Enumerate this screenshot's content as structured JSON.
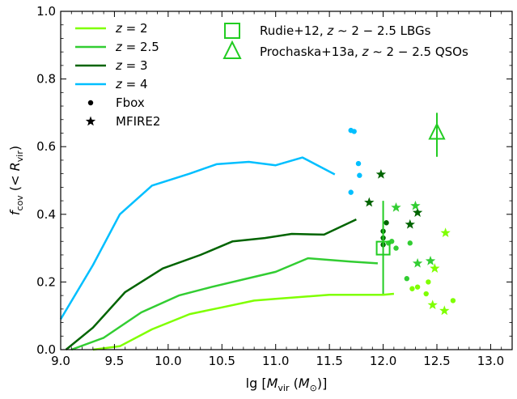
{
  "chart_data": {
    "type": "line",
    "xlabel": "lg [M_vir (M_⊙)]",
    "ylabel": "f_cov (< R_vir)",
    "xlim": [
      9.0,
      13.2
    ],
    "ylim": [
      0.0,
      1.0
    ],
    "x_ticks": [
      "9.0",
      "9.5",
      "10.0",
      "10.5",
      "11.0",
      "11.5",
      "12.0",
      "12.5",
      "13.0"
    ],
    "y_ticks": [
      "0.0",
      "0.2",
      "0.4",
      "0.6",
      "0.8",
      "1.0"
    ],
    "grid": false,
    "legend_left": [
      {
        "name": "z = 2",
        "marker": "line",
        "color": "#7fff00"
      },
      {
        "name": "z = 2.5",
        "marker": "line",
        "color": "#32cd32"
      },
      {
        "name": "z = 3",
        "marker": "line",
        "color": "#006400"
      },
      {
        "name": "z = 4",
        "marker": "line",
        "color": "#00bfff"
      },
      {
        "name": "Fbox",
        "marker": "dot",
        "color": "#000000"
      },
      {
        "name": "MFIRE2",
        "marker": "star",
        "color": "#000000"
      }
    ],
    "legend_right": [
      {
        "name": "Rudie+12, z ∼ 2 − 2.5 LBGs",
        "marker": "square",
        "color": "#22cc22"
      },
      {
        "name": "Prochaska+13a, z ∼ 2 − 2.5 QSOs",
        "marker": "triangle",
        "color": "#22cc22"
      }
    ],
    "series": [
      {
        "z": "2",
        "color": "#7fff00",
        "x": [
          9.3,
          9.55,
          9.85,
          10.2,
          10.5,
          10.8,
          11.0,
          11.2,
          11.5,
          11.7,
          12.0,
          12.1
        ],
        "y": [
          0.0,
          0.01,
          0.06,
          0.105,
          0.125,
          0.145,
          0.15,
          0.155,
          0.162,
          0.162,
          0.162,
          0.165
        ]
      },
      {
        "z": "2.5",
        "color": "#32cd32",
        "x": [
          9.1,
          9.4,
          9.75,
          10.1,
          10.4,
          10.8,
          11.0,
          11.3,
          11.7,
          11.95
        ],
        "y": [
          0.0,
          0.035,
          0.11,
          0.16,
          0.185,
          0.215,
          0.23,
          0.27,
          0.26,
          0.255
        ]
      },
      {
        "z": "3",
        "color": "#006400",
        "x": [
          9.05,
          9.3,
          9.6,
          9.95,
          10.3,
          10.6,
          10.9,
          11.15,
          11.45,
          11.75
        ],
        "y": [
          0.0,
          0.065,
          0.17,
          0.24,
          0.28,
          0.32,
          0.33,
          0.342,
          0.34,
          0.385
        ]
      },
      {
        "z": "4",
        "color": "#00bfff",
        "x": [
          9.0,
          9.3,
          9.55,
          9.85,
          10.2,
          10.45,
          10.75,
          11.0,
          11.25,
          11.55
        ],
        "y": [
          0.09,
          0.25,
          0.4,
          0.485,
          0.52,
          0.548,
          0.555,
          0.545,
          0.568,
          0.518
        ]
      }
    ],
    "fbox_points": [
      {
        "x": 11.7,
        "y": 0.648,
        "color": "#00bfff"
      },
      {
        "x": 11.73,
        "y": 0.645,
        "color": "#00bfff"
      },
      {
        "x": 11.77,
        "y": 0.55,
        "color": "#00bfff"
      },
      {
        "x": 11.78,
        "y": 0.515,
        "color": "#00bfff"
      },
      {
        "x": 11.7,
        "y": 0.465,
        "color": "#00bfff"
      },
      {
        "x": 12.03,
        "y": 0.375,
        "color": "#006400"
      },
      {
        "x": 12.0,
        "y": 0.35,
        "color": "#006400"
      },
      {
        "x": 12.0,
        "y": 0.33,
        "color": "#006400"
      },
      {
        "x": 12.0,
        "y": 0.31,
        "color": "#006400"
      },
      {
        "x": 12.05,
        "y": 0.315,
        "color": "#32cd32"
      },
      {
        "x": 12.08,
        "y": 0.32,
        "color": "#32cd32"
      },
      {
        "x": 12.12,
        "y": 0.3,
        "color": "#32cd32"
      },
      {
        "x": 12.25,
        "y": 0.315,
        "color": "#32cd32"
      },
      {
        "x": 12.22,
        "y": 0.21,
        "color": "#32cd32"
      },
      {
        "x": 12.27,
        "y": 0.18,
        "color": "#7fff00"
      },
      {
        "x": 12.32,
        "y": 0.185,
        "color": "#7fff00"
      },
      {
        "x": 12.4,
        "y": 0.165,
        "color": "#7fff00"
      },
      {
        "x": 12.42,
        "y": 0.2,
        "color": "#7fff00"
      },
      {
        "x": 12.65,
        "y": 0.145,
        "color": "#7fff00"
      }
    ],
    "mfire2_points": [
      {
        "x": 11.98,
        "y": 0.518,
        "color": "#006400"
      },
      {
        "x": 11.87,
        "y": 0.435,
        "color": "#006400"
      },
      {
        "x": 12.25,
        "y": 0.37,
        "color": "#006400"
      },
      {
        "x": 12.32,
        "y": 0.405,
        "color": "#006400"
      },
      {
        "x": 12.12,
        "y": 0.42,
        "color": "#32cd32"
      },
      {
        "x": 12.3,
        "y": 0.425,
        "color": "#32cd32"
      },
      {
        "x": 12.32,
        "y": 0.255,
        "color": "#32cd32"
      },
      {
        "x": 12.44,
        "y": 0.262,
        "color": "#32cd32"
      },
      {
        "x": 12.48,
        "y": 0.24,
        "color": "#7fff00"
      },
      {
        "x": 12.58,
        "y": 0.345,
        "color": "#7fff00"
      },
      {
        "x": 12.46,
        "y": 0.132,
        "color": "#7fff00"
      },
      {
        "x": 12.57,
        "y": 0.115,
        "color": "#7fff00"
      }
    ],
    "observations": [
      {
        "name": "Rudie+12",
        "marker": "square",
        "x": 12.0,
        "y": 0.3,
        "y_low": 0.165,
        "y_high": 0.44,
        "color": "#22cc22"
      },
      {
        "name": "Prochaska+13a",
        "marker": "triangle",
        "x": 12.5,
        "y": 0.64,
        "y_low": 0.57,
        "y_high": 0.7,
        "color": "#22cc22"
      }
    ]
  }
}
